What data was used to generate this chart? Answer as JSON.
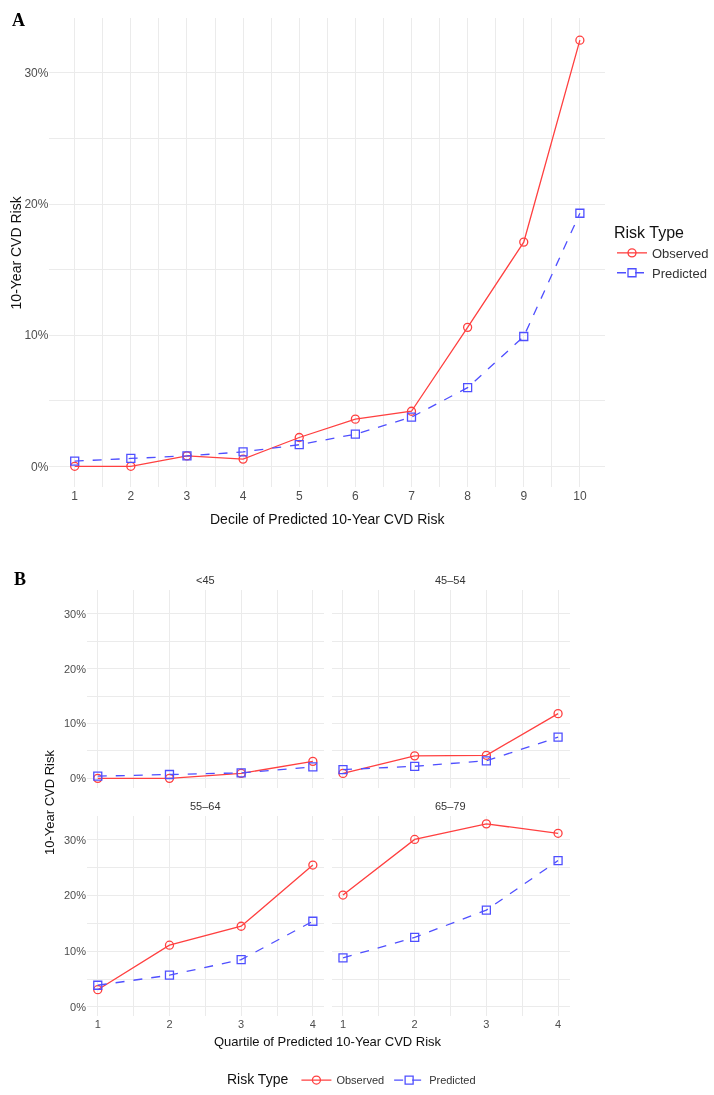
{
  "chart_data": [
    {
      "type": "line",
      "annotations": [
        "A"
      ],
      "xlabel": "Decile of Predicted 10-Year CVD Risk",
      "ylabel": "10-Year CVD Risk",
      "legend_title": "Risk Type",
      "legend": "right",
      "grid": true,
      "x": [
        1,
        2,
        3,
        4,
        5,
        6,
        7,
        8,
        9,
        10
      ],
      "xlim": [
        0.55,
        10.45
      ],
      "xticks": [
        {
          "value": 1,
          "label": "1"
        },
        {
          "value": 1.5,
          "label": null
        },
        2,
        {
          "value": 2.5,
          "label": null
        },
        3,
        {
          "value": 3.5,
          "label": null
        },
        4,
        {
          "value": 4.5,
          "label": null
        },
        5,
        {
          "value": 5.5,
          "label": null
        },
        6,
        {
          "value": 6.5,
          "label": null
        },
        7,
        {
          "value": 7.5,
          "label": null
        },
        8,
        {
          "value": 8.5,
          "label": null
        },
        9,
        {
          "value": 9.5,
          "label": null
        },
        10
      ],
      "ylim": [
        -1.6,
        34.2
      ],
      "yticks": [
        {
          "value": 0,
          "label": "0%"
        },
        {
          "value": 5,
          "label": null
        },
        {
          "value": 10,
          "label": "10%"
        },
        {
          "value": 15,
          "label": null
        },
        {
          "value": 20,
          "label": "20%"
        },
        {
          "value": 25,
          "label": null
        },
        {
          "value": 30,
          "label": "30%"
        }
      ],
      "series": [
        {
          "name": "Observed",
          "color": "#ff4040",
          "marker": "circle",
          "line_style": "solid",
          "values": [
            0,
            0,
            0.8,
            0.55,
            2.2,
            3.6,
            4.2,
            10.6,
            17.1,
            32.5
          ]
        },
        {
          "name": "Predicted",
          "color": "#4f4fff",
          "marker": "square",
          "line_style": "dashed",
          "values": [
            0.4,
            0.6,
            0.8,
            1.1,
            1.65,
            2.45,
            3.75,
            6.0,
            9.9,
            19.3
          ]
        }
      ]
    },
    {
      "type": "line",
      "title": "<45",
      "annotations": [
        "B"
      ],
      "ylabel": "10-Year CVD Risk",
      "legend_title": "Risk Type",
      "legend": "bottom",
      "grid": true,
      "tick_labels": "y",
      "x": [
        1,
        2,
        3,
        4
      ],
      "xlim": [
        0.85,
        4.16
      ],
      "xticks": [
        {
          "value": 1,
          "label": null
        },
        {
          "value": 1.5,
          "label": null
        },
        {
          "value": 2,
          "label": null
        },
        {
          "value": 2.5,
          "label": null
        },
        {
          "value": 3,
          "label": null
        },
        {
          "value": 3.5,
          "label": null
        },
        {
          "value": 4,
          "label": null
        }
      ],
      "ylim": [
        -1.7,
        34.4
      ],
      "yticks": [
        {
          "value": 0,
          "label": "0%"
        },
        {
          "value": 5,
          "label": null
        },
        {
          "value": 10,
          "label": "10%"
        },
        {
          "value": 15,
          "label": null
        },
        {
          "value": 20,
          "label": "20%"
        },
        {
          "value": 25,
          "label": null
        },
        {
          "value": 30,
          "label": "30%"
        }
      ],
      "series": [
        {
          "name": "Observed",
          "color": "#ff4040",
          "marker": "circle",
          "line_style": "solid",
          "values": [
            0,
            0,
            0.9,
            3.1
          ]
        },
        {
          "name": "Predicted",
          "color": "#4f4fff",
          "marker": "square",
          "line_style": "dashed",
          "values": [
            0.4,
            0.7,
            1.0,
            2.1
          ]
        }
      ]
    },
    {
      "type": "line",
      "title": "45–54",
      "grid": true,
      "tick_labels": false,
      "x": [
        1,
        2,
        3,
        4
      ],
      "xlim": [
        0.85,
        4.16
      ],
      "xticks": [
        {
          "value": 1,
          "label": null
        },
        {
          "value": 1.5,
          "label": null
        },
        {
          "value": 2,
          "label": null
        },
        {
          "value": 2.5,
          "label": null
        },
        {
          "value": 3,
          "label": null
        },
        {
          "value": 3.5,
          "label": null
        },
        {
          "value": 4,
          "label": null
        }
      ],
      "ylim": [
        -1.7,
        34.4
      ],
      "yticks": [
        {
          "value": 0,
          "label": null
        },
        {
          "value": 5,
          "label": null
        },
        {
          "value": 10,
          "label": null
        },
        {
          "value": 15,
          "label": null
        },
        {
          "value": 20,
          "label": null
        },
        {
          "value": 25,
          "label": null
        },
        {
          "value": 30,
          "label": null
        }
      ],
      "series": [
        {
          "color": "#ff4040",
          "marker": "circle",
          "line_style": "solid",
          "values": [
            0.9,
            4.1,
            4.2,
            11.8
          ]
        },
        {
          "color": "#4f4fff",
          "marker": "square",
          "line_style": "dashed",
          "values": [
            1.6,
            2.2,
            3.2,
            7.5
          ]
        }
      ]
    },
    {
      "type": "line",
      "title": "55–64",
      "xlabel": "Quartile of Predicted 10-Year CVD Risk",
      "grid": true,
      "x": [
        1,
        2,
        3,
        4
      ],
      "xlim": [
        0.85,
        4.16
      ],
      "xticks": [
        1,
        {
          "value": 1.5,
          "label": null
        },
        2,
        {
          "value": 2.5,
          "label": null
        },
        3,
        {
          "value": 3.5,
          "label": null
        },
        4
      ],
      "ylim": [
        -1.7,
        34.4
      ],
      "yticks": [
        {
          "value": 0,
          "label": "0%"
        },
        {
          "value": 5,
          "label": null
        },
        {
          "value": 10,
          "label": "10%"
        },
        {
          "value": 15,
          "label": null
        },
        {
          "value": 20,
          "label": "20%"
        },
        {
          "value": 25,
          "label": null
        },
        {
          "value": 30,
          "label": "30%"
        }
      ],
      "series": [
        {
          "color": "#ff4040",
          "marker": "circle",
          "line_style": "solid",
          "values": [
            3.1,
            11.1,
            14.5,
            25.5
          ]
        },
        {
          "color": "#4f4fff",
          "marker": "square",
          "line_style": "dashed",
          "values": [
            3.9,
            5.7,
            8.5,
            15.4
          ]
        }
      ]
    },
    {
      "type": "line",
      "title": "65–79",
      "grid": true,
      "tick_labels": "x",
      "x": [
        1,
        2,
        3,
        4
      ],
      "xlim": [
        0.85,
        4.16
      ],
      "xticks": [
        1,
        {
          "value": 1.5,
          "label": null
        },
        2,
        {
          "value": 2.5,
          "label": null
        },
        3,
        {
          "value": 3.5,
          "label": null
        },
        4
      ],
      "ylim": [
        -1.7,
        34.4
      ],
      "yticks": [
        {
          "value": 0,
          "label": null
        },
        {
          "value": 5,
          "label": null
        },
        {
          "value": 10,
          "label": null
        },
        {
          "value": 15,
          "label": null
        },
        {
          "value": 20,
          "label": null
        },
        {
          "value": 25,
          "label": null
        },
        {
          "value": 30,
          "label": null
        }
      ],
      "series": [
        {
          "color": "#ff4040",
          "marker": "circle",
          "line_style": "solid",
          "values": [
            20.1,
            30.1,
            32.9,
            31.2
          ]
        },
        {
          "color": "#4f4fff",
          "marker": "square",
          "line_style": "dashed",
          "values": [
            8.8,
            12.5,
            17.4,
            26.3
          ]
        }
      ]
    }
  ]
}
